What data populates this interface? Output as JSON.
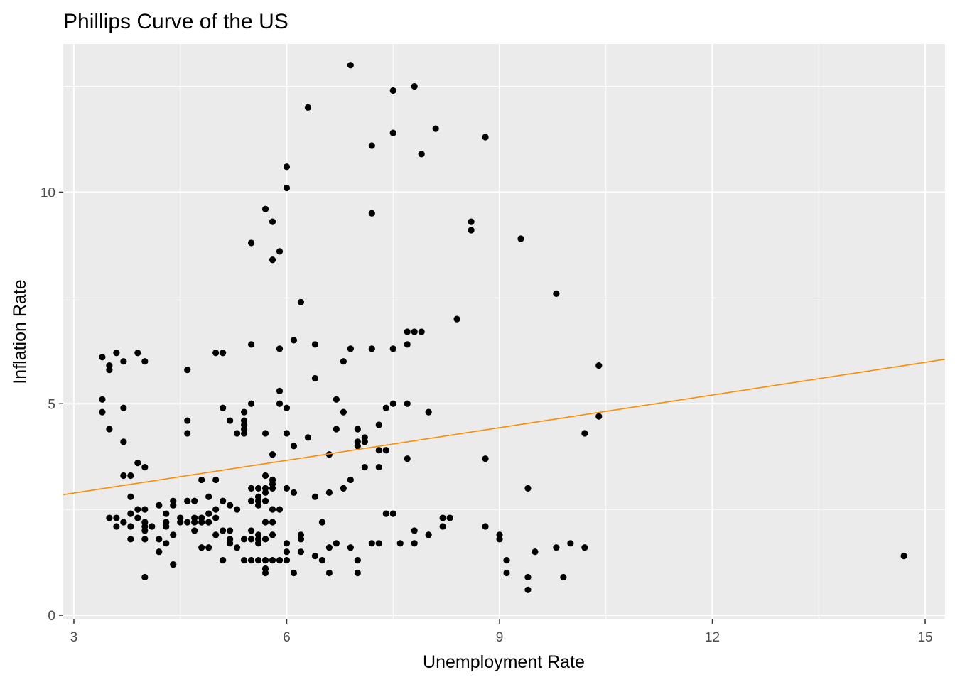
{
  "chart_data": {
    "type": "scatter",
    "title": "Phillips Curve of the US",
    "xlabel": "Unemployment Rate",
    "ylabel": "Inflation Rate",
    "xlim": [
      2.85,
      15.28
    ],
    "ylim": [
      -0.1,
      13.5
    ],
    "x_ticks": [
      3,
      6,
      9,
      12,
      15
    ],
    "y_ticks": [
      0,
      5,
      10
    ],
    "grid": true,
    "legend": "none",
    "colors": {
      "panel": "#ebebeb",
      "grid": "#ffffff",
      "points": "#000000",
      "fit_line": "#ff8c00"
    },
    "trend_line": {
      "x": [
        2.85,
        15.28
      ],
      "y": [
        2.85,
        6.05
      ]
    },
    "points": [
      [
        3.4,
        6.1
      ],
      [
        3.4,
        5.1
      ],
      [
        3.4,
        4.8
      ],
      [
        3.5,
        5.9
      ],
      [
        3.5,
        5.8
      ],
      [
        3.5,
        4.4
      ],
      [
        3.6,
        6.2
      ],
      [
        3.7,
        6.0
      ],
      [
        3.7,
        4.9
      ],
      [
        3.7,
        4.1
      ],
      [
        3.9,
        6.2
      ],
      [
        4.0,
        6.0
      ],
      [
        4.6,
        5.8
      ],
      [
        4.6,
        4.6
      ],
      [
        4.6,
        4.3
      ],
      [
        3.7,
        3.3
      ],
      [
        3.8,
        3.3
      ],
      [
        3.9,
        3.6
      ],
      [
        4.0,
        3.5
      ],
      [
        3.5,
        2.3
      ],
      [
        3.6,
        2.3
      ],
      [
        3.6,
        2.1
      ],
      [
        3.7,
        2.2
      ],
      [
        3.8,
        2.8
      ],
      [
        3.8,
        2.4
      ],
      [
        3.8,
        2.1
      ],
      [
        3.8,
        1.8
      ],
      [
        3.9,
        2.5
      ],
      [
        3.9,
        2.3
      ],
      [
        4.0,
        2.5
      ],
      [
        4.0,
        2.2
      ],
      [
        4.0,
        2.1
      ],
      [
        4.0,
        2.0
      ],
      [
        4.0,
        1.8
      ],
      [
        4.0,
        0.9
      ],
      [
        4.1,
        2.1
      ],
      [
        4.2,
        2.6
      ],
      [
        4.2,
        1.8
      ],
      [
        4.2,
        1.5
      ],
      [
        4.3,
        2.4
      ],
      [
        4.3,
        2.2
      ],
      [
        4.3,
        2.1
      ],
      [
        4.3,
        1.7
      ],
      [
        4.4,
        2.7
      ],
      [
        4.4,
        2.6
      ],
      [
        4.4,
        1.9
      ],
      [
        4.4,
        1.2
      ],
      [
        4.5,
        2.3
      ],
      [
        4.5,
        2.2
      ],
      [
        4.6,
        2.7
      ],
      [
        4.6,
        2.2
      ],
      [
        4.7,
        2.7
      ],
      [
        4.7,
        2.3
      ],
      [
        4.7,
        2.2
      ],
      [
        4.7,
        2.0
      ],
      [
        4.8,
        3.2
      ],
      [
        4.8,
        2.3
      ],
      [
        4.8,
        2.2
      ],
      [
        4.8,
        1.6
      ],
      [
        4.9,
        2.8
      ],
      [
        4.9,
        2.4
      ],
      [
        4.9,
        2.2
      ],
      [
        4.9,
        1.6
      ],
      [
        5.0,
        3.2
      ],
      [
        5.0,
        2.5
      ],
      [
        5.0,
        2.3
      ],
      [
        5.0,
        1.9
      ],
      [
        5.0,
        6.2
      ],
      [
        5.1,
        6.2
      ],
      [
        5.1,
        4.9
      ],
      [
        5.1,
        2.7
      ],
      [
        5.1,
        2.0
      ],
      [
        5.1,
        1.3
      ],
      [
        5.2,
        4.6
      ],
      [
        5.2,
        2.6
      ],
      [
        5.2,
        2.0
      ],
      [
        5.2,
        1.8
      ],
      [
        5.2,
        1.7
      ],
      [
        5.3,
        4.3
      ],
      [
        5.3,
        2.5
      ],
      [
        5.3,
        1.6
      ],
      [
        5.4,
        4.8
      ],
      [
        5.4,
        4.6
      ],
      [
        5.4,
        4.5
      ],
      [
        5.4,
        4.4
      ],
      [
        5.4,
        4.3
      ],
      [
        5.4,
        1.8
      ],
      [
        5.4,
        1.3
      ],
      [
        5.5,
        8.8
      ],
      [
        5.5,
        6.4
      ],
      [
        5.5,
        5.0
      ],
      [
        5.5,
        3.0
      ],
      [
        5.5,
        2.7
      ],
      [
        5.5,
        2.0
      ],
      [
        5.5,
        1.8
      ],
      [
        5.5,
        1.3
      ],
      [
        5.6,
        3.0
      ],
      [
        5.6,
        2.8
      ],
      [
        5.6,
        2.7
      ],
      [
        5.6,
        2.6
      ],
      [
        5.6,
        1.9
      ],
      [
        5.6,
        1.8
      ],
      [
        5.6,
        1.7
      ],
      [
        5.6,
        1.3
      ],
      [
        5.7,
        9.6
      ],
      [
        5.7,
        4.3
      ],
      [
        5.7,
        3.3
      ],
      [
        5.7,
        3.0
      ],
      [
        5.7,
        2.9
      ],
      [
        5.7,
        2.7
      ],
      [
        5.7,
        2.2
      ],
      [
        5.7,
        1.8
      ],
      [
        5.7,
        1.3
      ],
      [
        5.7,
        1.1
      ],
      [
        5.7,
        1.0
      ],
      [
        5.8,
        9.3
      ],
      [
        5.8,
        8.4
      ],
      [
        5.8,
        3.8
      ],
      [
        5.8,
        3.2
      ],
      [
        5.8,
        3.1
      ],
      [
        5.8,
        3.0
      ],
      [
        5.8,
        2.5
      ],
      [
        5.8,
        2.2
      ],
      [
        5.8,
        1.9
      ],
      [
        5.8,
        1.3
      ],
      [
        5.9,
        8.6
      ],
      [
        5.9,
        6.3
      ],
      [
        5.9,
        5.3
      ],
      [
        5.9,
        5.0
      ],
      [
        5.9,
        2.5
      ],
      [
        5.9,
        1.3
      ],
      [
        6.0,
        10.6
      ],
      [
        6.0,
        10.1
      ],
      [
        6.0,
        4.9
      ],
      [
        6.0,
        4.3
      ],
      [
        6.0,
        3.0
      ],
      [
        6.0,
        1.7
      ],
      [
        6.0,
        1.5
      ],
      [
        6.0,
        1.3
      ],
      [
        6.1,
        6.5
      ],
      [
        6.1,
        4.0
      ],
      [
        6.1,
        2.9
      ],
      [
        6.1,
        1.0
      ],
      [
        6.2,
        7.4
      ],
      [
        6.2,
        1.9
      ],
      [
        6.2,
        1.8
      ],
      [
        6.2,
        1.5
      ],
      [
        6.3,
        12.0
      ],
      [
        6.3,
        4.2
      ],
      [
        6.4,
        6.4
      ],
      [
        6.4,
        5.6
      ],
      [
        6.4,
        2.8
      ],
      [
        6.4,
        1.4
      ],
      [
        6.5,
        2.2
      ],
      [
        6.5,
        1.3
      ],
      [
        6.6,
        3.8
      ],
      [
        6.6,
        2.9
      ],
      [
        6.6,
        1.6
      ],
      [
        6.6,
        1.0
      ],
      [
        6.7,
        5.1
      ],
      [
        6.7,
        4.4
      ],
      [
        6.7,
        1.7
      ],
      [
        6.8,
        6.0
      ],
      [
        6.8,
        4.8
      ],
      [
        6.8,
        3.0
      ],
      [
        6.9,
        13.0
      ],
      [
        6.9,
        6.3
      ],
      [
        6.9,
        3.2
      ],
      [
        6.9,
        1.6
      ],
      [
        7.0,
        4.4
      ],
      [
        7.0,
        4.1
      ],
      [
        7.0,
        4.0
      ],
      [
        7.0,
        1.3
      ],
      [
        7.0,
        1.0
      ],
      [
        7.1,
        4.2
      ],
      [
        7.1,
        4.1
      ],
      [
        7.1,
        3.5
      ],
      [
        7.2,
        11.1
      ],
      [
        7.2,
        9.5
      ],
      [
        7.2,
        6.3
      ],
      [
        7.2,
        1.7
      ],
      [
        7.3,
        4.5
      ],
      [
        7.3,
        3.9
      ],
      [
        7.3,
        3.5
      ],
      [
        7.3,
        1.7
      ],
      [
        7.4,
        4.9
      ],
      [
        7.4,
        3.9
      ],
      [
        7.4,
        2.4
      ],
      [
        7.5,
        12.4
      ],
      [
        7.5,
        11.4
      ],
      [
        7.5,
        6.3
      ],
      [
        7.5,
        5.0
      ],
      [
        7.5,
        2.4
      ],
      [
        7.6,
        1.7
      ],
      [
        7.7,
        6.7
      ],
      [
        7.7,
        6.4
      ],
      [
        7.7,
        5.0
      ],
      [
        7.7,
        3.7
      ],
      [
        7.8,
        12.5
      ],
      [
        7.8,
        6.7
      ],
      [
        7.8,
        2.0
      ],
      [
        7.8,
        1.7
      ],
      [
        7.9,
        10.9
      ],
      [
        7.9,
        6.7
      ],
      [
        8.0,
        4.8
      ],
      [
        8.0,
        1.9
      ],
      [
        8.1,
        11.5
      ],
      [
        8.2,
        2.3
      ],
      [
        8.2,
        2.1
      ],
      [
        8.3,
        2.3
      ],
      [
        8.4,
        7.0
      ],
      [
        8.6,
        9.3
      ],
      [
        8.6,
        9.1
      ],
      [
        8.8,
        11.3
      ],
      [
        8.8,
        3.7
      ],
      [
        8.8,
        2.1
      ],
      [
        9.0,
        1.9
      ],
      [
        9.0,
        1.8
      ],
      [
        9.1,
        1.3
      ],
      [
        9.1,
        1.0
      ],
      [
        9.3,
        8.9
      ],
      [
        9.4,
        3.0
      ],
      [
        9.4,
        0.9
      ],
      [
        9.4,
        0.6
      ],
      [
        9.5,
        1.5
      ],
      [
        9.8,
        7.6
      ],
      [
        9.8,
        1.6
      ],
      [
        9.9,
        0.9
      ],
      [
        10.0,
        1.7
      ],
      [
        10.2,
        4.3
      ],
      [
        10.2,
        1.6
      ],
      [
        10.4,
        5.9
      ],
      [
        10.4,
        4.7
      ],
      [
        14.7,
        1.4
      ]
    ]
  }
}
